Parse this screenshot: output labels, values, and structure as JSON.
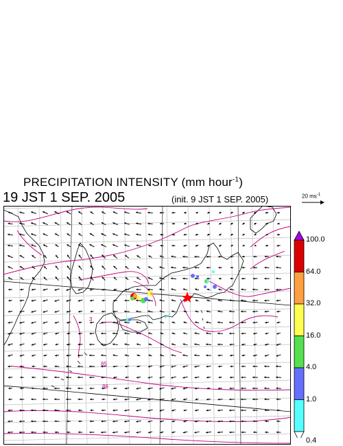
{
  "header": {
    "title_main": "PRECIPITATION INTENSITY (mm hour",
    "title_sup": "-1",
    "title_close": ")",
    "valid_time": "19 JST 1 SEP. 2005",
    "init_time": "(init. 9 JST 1 SEP. 2005)"
  },
  "wind_reference": {
    "label": "20 ms",
    "label_sup": "-1"
  },
  "map": {
    "contour_labels": [
      "3",
      "85",
      "86"
    ],
    "marker": "red-star",
    "land_color": "#ffffff",
    "coast_color": "#000000",
    "grid_color": "#bdbdbd",
    "contour_color": "#c0007f"
  },
  "color_scale": {
    "levels": [
      "100.0",
      "64.0",
      "32.0",
      "16.0",
      "4.0",
      "1.0",
      "0.4"
    ],
    "bins": [
      {
        "color": "#dd0000",
        "from": "64.0",
        "to": "100.0"
      },
      {
        "color": "#ffa040",
        "from": "32.0",
        "to": "64.0"
      },
      {
        "color": "#ffff50",
        "from": "16.0",
        "to": "32.0"
      },
      {
        "color": "#55e050",
        "from": "4.0",
        "to": "16.0"
      },
      {
        "color": "#6670ff",
        "from": "1.0",
        "to": "4.0"
      },
      {
        "color": "#55ffff",
        "from": "0.4",
        "to": "1.0"
      }
    ],
    "above_color": "#b000e0",
    "below_color": "#ffffff"
  }
}
